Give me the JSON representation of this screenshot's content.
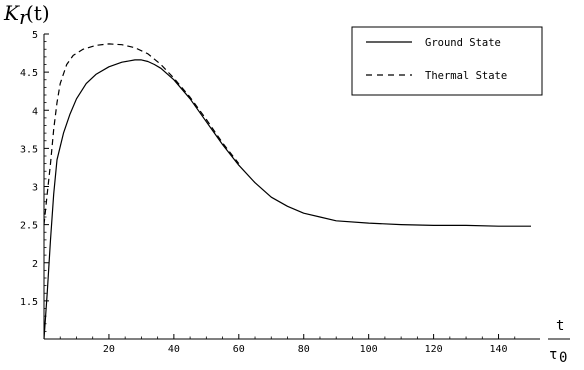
{
  "chart_data": {
    "type": "line",
    "title": "",
    "ylabel": "K_r(t)",
    "xlabel_num": "t",
    "xlabel_den": "τ",
    "xlabel_den_sub": "0",
    "xlim": [
      0,
      150
    ],
    "ylim": [
      1,
      5
    ],
    "x_ticks": [
      20,
      40,
      60,
      80,
      100,
      120,
      140
    ],
    "y_ticks": [
      1.5,
      2,
      2.5,
      3,
      3.5,
      4,
      4.5,
      5
    ],
    "grid": false,
    "legend_position": "top-right",
    "series": [
      {
        "name": "Ground State",
        "style": "solid",
        "points": [
          [
            0,
            1.0
          ],
          [
            1,
            1.6
          ],
          [
            2,
            2.3
          ],
          [
            3,
            2.9
          ],
          [
            4,
            3.35
          ],
          [
            6,
            3.7
          ],
          [
            8,
            3.95
          ],
          [
            10,
            4.15
          ],
          [
            13,
            4.35
          ],
          [
            16,
            4.47
          ],
          [
            20,
            4.57
          ],
          [
            24,
            4.63
          ],
          [
            28,
            4.66
          ],
          [
            30,
            4.66
          ],
          [
            32,
            4.64
          ],
          [
            34,
            4.6
          ],
          [
            36,
            4.55
          ],
          [
            40,
            4.4
          ],
          [
            45,
            4.15
          ],
          [
            50,
            3.85
          ],
          [
            55,
            3.55
          ],
          [
            60,
            3.28
          ],
          [
            65,
            3.05
          ],
          [
            70,
            2.86
          ],
          [
            75,
            2.74
          ],
          [
            80,
            2.65
          ],
          [
            85,
            2.6
          ],
          [
            90,
            2.55
          ],
          [
            100,
            2.52
          ],
          [
            110,
            2.5
          ],
          [
            120,
            2.49
          ],
          [
            130,
            2.49
          ],
          [
            140,
            2.48
          ],
          [
            150,
            2.48
          ]
        ]
      },
      {
        "name": "Thermal State",
        "style": "dashed",
        "points": [
          [
            0,
            2.5
          ],
          [
            1,
            2.9
          ],
          [
            2,
            3.3
          ],
          [
            3,
            3.75
          ],
          [
            4,
            4.1
          ],
          [
            5,
            4.35
          ],
          [
            7,
            4.6
          ],
          [
            9,
            4.72
          ],
          [
            12,
            4.8
          ],
          [
            16,
            4.85
          ],
          [
            20,
            4.87
          ],
          [
            24,
            4.86
          ],
          [
            28,
            4.82
          ],
          [
            32,
            4.74
          ],
          [
            36,
            4.6
          ],
          [
            40,
            4.42
          ],
          [
            45,
            4.17
          ],
          [
            50,
            3.88
          ],
          [
            55,
            3.57
          ],
          [
            60,
            3.3
          ]
        ]
      }
    ]
  }
}
